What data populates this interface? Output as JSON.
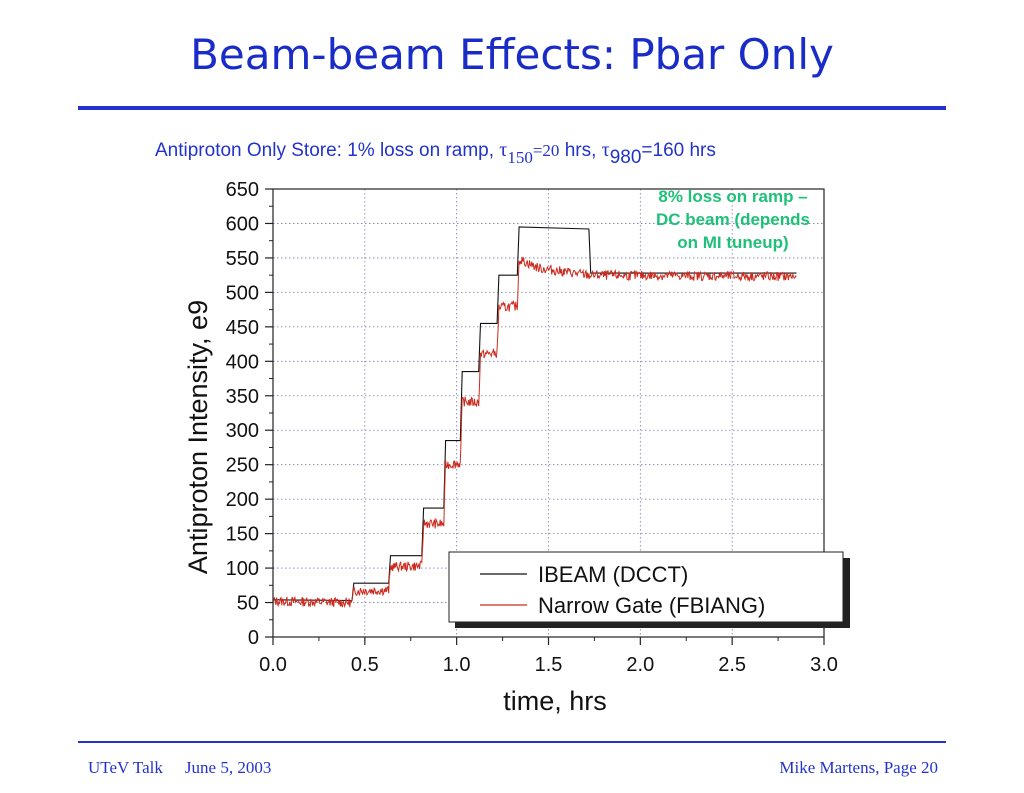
{
  "slide": {
    "title": "Beam-beam Effects: Pbar Only",
    "footer_left": "UTeV Talk",
    "footer_date": "June 5, 2003",
    "footer_right": "Mike Martens, Page 20"
  },
  "chart_data": {
    "type": "line",
    "title_prefix": "Antiproton Only Store: 1% loss on ramp, ",
    "title_tau150_symbol": "τ",
    "title_tau150_sub": "150",
    "title_tau150_val": "=20",
    "title_mid": " hrs, ",
    "title_tau980_symbol": "τ",
    "title_tau980_sub": "980",
    "title_tau980_val": "=160 hrs",
    "xlabel": "time, hrs",
    "ylabel": "Antiproton Intensity, e9",
    "xlim": [
      0,
      3.0
    ],
    "ylim": [
      0,
      650
    ],
    "x_ticks": [
      "0.0",
      "0.5",
      "1.0",
      "1.5",
      "2.0",
      "2.5",
      "3.0"
    ],
    "y_ticks": [
      "0",
      "50",
      "100",
      "150",
      "200",
      "250",
      "300",
      "350",
      "400",
      "450",
      "500",
      "550",
      "600",
      "650"
    ],
    "grid": true,
    "legend_position": "bottom-right",
    "annotation": {
      "lines": [
        "8% loss on ramp –",
        "DC beam (depends",
        "on MI tuneup)"
      ],
      "color": "#1fc078"
    },
    "series": [
      {
        "name": "IBEAM (DCCT)",
        "color": "#111111",
        "x": [
          0,
          0.43,
          0.44,
          0.63,
          0.64,
          0.81,
          0.82,
          0.93,
          0.94,
          1.02,
          1.03,
          1.12,
          1.13,
          1.22,
          1.23,
          1.33,
          1.34,
          1.72,
          1.73,
          2.85
        ],
        "y": [
          54,
          53,
          78,
          78,
          118,
          118,
          187,
          187,
          285,
          285,
          385,
          385,
          455,
          455,
          525,
          525,
          595,
          592,
          528,
          528
        ]
      },
      {
        "name": "Narrow Gate (FBIANG)",
        "color": "#cc2a1e",
        "noise": 7,
        "x": [
          0,
          0.43,
          0.44,
          0.63,
          0.64,
          0.81,
          0.82,
          0.93,
          0.94,
          1.02,
          1.03,
          1.12,
          1.13,
          1.22,
          1.23,
          1.33,
          1.34,
          1.45,
          1.72,
          2.85
        ],
        "y": [
          52,
          50,
          67,
          68,
          102,
          103,
          165,
          164,
          250,
          252,
          342,
          340,
          410,
          412,
          478,
          480,
          548,
          535,
          525,
          523
        ]
      }
    ]
  }
}
